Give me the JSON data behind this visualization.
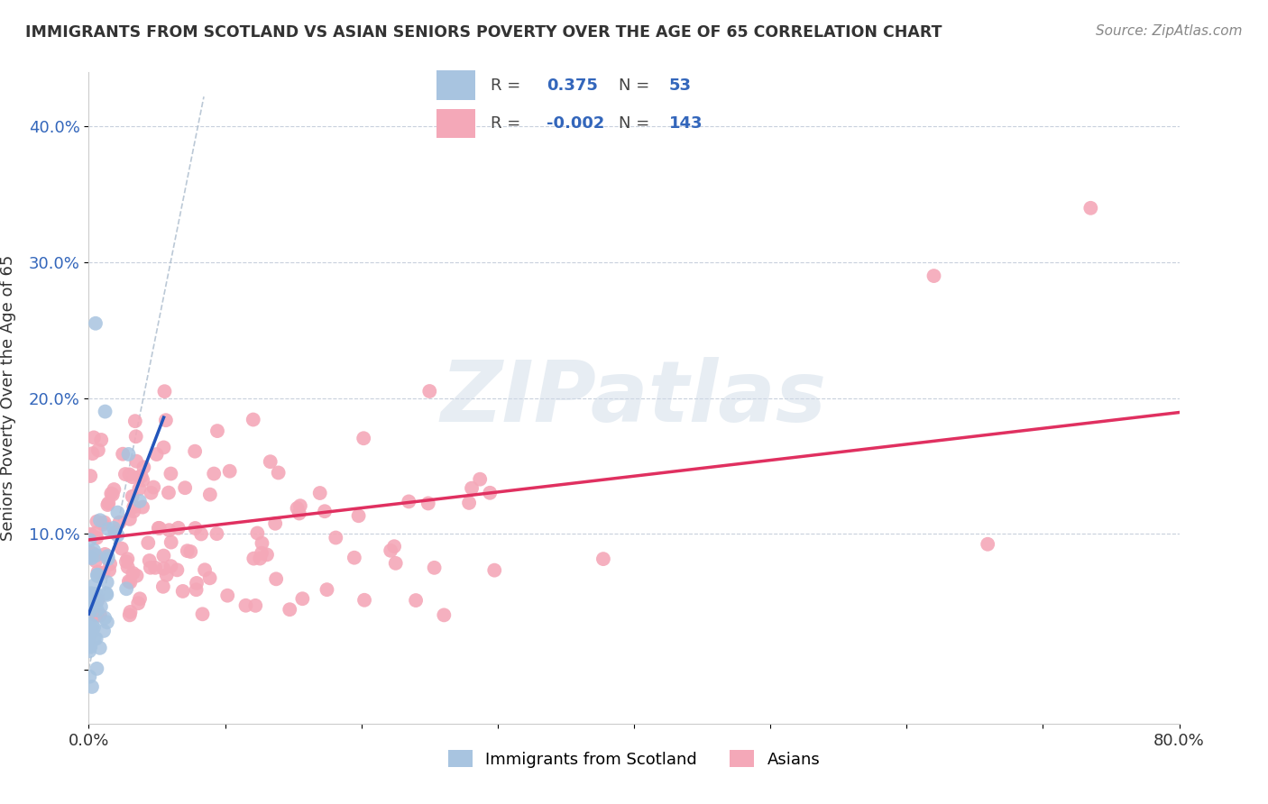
{
  "title": "IMMIGRANTS FROM SCOTLAND VS ASIAN SENIORS POVERTY OVER THE AGE OF 65 CORRELATION CHART",
  "source": "Source: ZipAtlas.com",
  "ylabel": "Seniors Poverty Over the Age of 65",
  "xlim": [
    0.0,
    0.8
  ],
  "ylim": [
    -0.04,
    0.44
  ],
  "yticks": [
    0.0,
    0.1,
    0.2,
    0.3,
    0.4
  ],
  "ytick_labels": [
    "",
    "10.0%",
    "20.0%",
    "30.0%",
    "40.0%"
  ],
  "scotland_R": 0.375,
  "scotland_N": 53,
  "asian_R": -0.002,
  "asian_N": 143,
  "scotland_color": "#a8c4e0",
  "asian_color": "#f4a8b8",
  "scotland_line_color": "#2255bb",
  "asian_line_color": "#e03060",
  "dash_line_color": "#aabbcc",
  "legend_label_scotland": "Immigrants from Scotland",
  "legend_label_asian": "Asians",
  "watermark": "ZIPatlas",
  "watermark_color": "#d0dce8"
}
